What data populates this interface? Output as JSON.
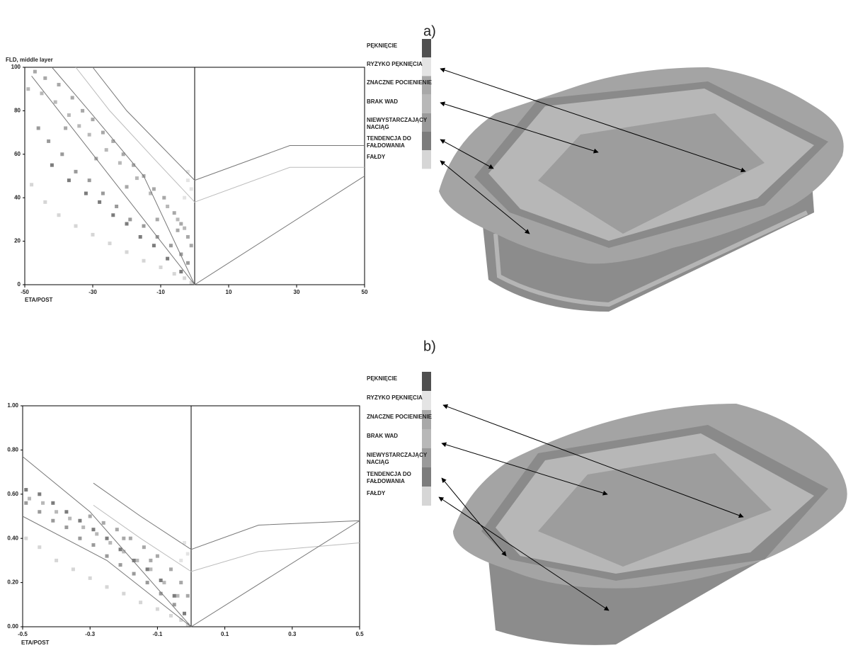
{
  "chart_data": [
    {
      "type": "scatter",
      "panel_label": "a)",
      "y_label": "FLD, middle layer",
      "x_label": "ETA/POST",
      "xlim": [
        -50,
        50
      ],
      "ylim": [
        0,
        100
      ],
      "xticks": [
        -50,
        -30,
        -10,
        10,
        30,
        50
      ],
      "yticks": [
        0,
        20,
        40,
        60,
        80,
        100
      ],
      "series": [
        {
          "name": "PĘKNIĘCIE",
          "color": "#505050",
          "x": [],
          "values": []
        },
        {
          "name": "RYZYKO PĘKNIĘCIA",
          "color": "#e4e4e4",
          "x": [
            -2,
            -1,
            -3,
            -2
          ],
          "values": [
            48,
            44,
            40,
            52
          ]
        },
        {
          "name": "ZNACZNE POCIENIENIE",
          "color": "#a8a8a8",
          "x": [
            -47,
            -44,
            -40,
            -36,
            -33,
            -30,
            -27,
            -24,
            -21,
            -18,
            -15,
            -12,
            -9,
            -6,
            -4,
            -2,
            -1,
            -38,
            -29,
            -20,
            -11,
            -5
          ],
          "values": [
            98,
            95,
            92,
            86,
            80,
            76,
            70,
            66,
            60,
            55,
            50,
            44,
            40,
            33,
            28,
            22,
            18,
            72,
            58,
            45,
            30,
            25
          ]
        },
        {
          "name": "BRAK WAD",
          "color": "#b8b8b8",
          "x": [
            -49,
            -45,
            -41,
            -37,
            -34,
            -31,
            -26,
            -22,
            -17,
            -13,
            -8,
            -5,
            -3
          ],
          "values": [
            90,
            88,
            84,
            78,
            73,
            69,
            62,
            56,
            49,
            42,
            36,
            30,
            26
          ]
        },
        {
          "name": "NIEWYSTARCZAJĄCY NACIĄG",
          "color": "#9a9a9a",
          "x": [
            -46,
            -43,
            -39,
            -35,
            -31,
            -27,
            -23,
            -19,
            -15,
            -11,
            -7,
            -4,
            -2
          ],
          "values": [
            72,
            66,
            60,
            52,
            48,
            42,
            36,
            30,
            27,
            22,
            18,
            14,
            10
          ]
        },
        {
          "name": "TENDENCJA DO FAŁDOWANIA",
          "color": "#7c7c7c",
          "x": [
            -42,
            -37,
            -32,
            -28,
            -24,
            -20,
            -16,
            -12,
            -8,
            -4
          ],
          "values": [
            55,
            48,
            42,
            38,
            32,
            28,
            22,
            18,
            12,
            6
          ]
        },
        {
          "name": "FAŁDY",
          "color": "#d6d6d6",
          "x": [
            -48,
            -44,
            -40,
            -35,
            -30,
            -25,
            -20,
            -15,
            -10,
            -6,
            -3,
            -1
          ],
          "values": [
            46,
            38,
            32,
            27,
            23,
            19,
            15,
            11,
            8,
            5,
            3,
            1
          ]
        }
      ],
      "curves": [
        {
          "color": "#777777",
          "x": [
            -30,
            -20,
            -10,
            0,
            28,
            50
          ],
          "values": [
            100,
            80,
            64,
            48,
            64,
            64
          ]
        },
        {
          "color": "#bbbbbb",
          "x": [
            -35,
            -25,
            -12,
            0,
            28,
            50
          ],
          "values": [
            100,
            80,
            58,
            38,
            54,
            54
          ]
        },
        {
          "color": "#777777",
          "x": [
            -42,
            -30,
            -15,
            0
          ],
          "values": [
            100,
            78,
            50,
            0
          ]
        },
        {
          "color": "#777777",
          "x": [
            -48,
            -30,
            -15,
            0,
            50
          ],
          "values": [
            96,
            60,
            30,
            0,
            50
          ]
        }
      ]
    },
    {
      "type": "scatter",
      "panel_label": "b)",
      "x_label": "ETA/POST",
      "xlim": [
        -0.5,
        0.5
      ],
      "ylim": [
        0,
        1
      ],
      "xticks": [
        -0.5,
        -0.3,
        -0.1,
        0.1,
        0.3,
        0.5
      ],
      "yticks": [
        {
          "value": 0,
          "label": "0.00"
        },
        {
          "value": 0.2,
          "label": "0.20"
        },
        {
          "value": 0.4,
          "label": "0.40"
        },
        {
          "value": 0.6,
          "label": "0.60"
        },
        {
          "value": 0.8,
          "label": "0.80"
        },
        {
          "value": 1,
          "label": "1.00"
        }
      ],
      "series": [
        {
          "name": "PĘKNIĘCIE",
          "color": "#505050",
          "x": [],
          "values": []
        },
        {
          "name": "RYZYKO PĘKNIĘCIA",
          "color": "#e4e4e4",
          "x": [
            -0.02,
            -0.01,
            -0.03
          ],
          "values": [
            0.38,
            0.33,
            0.3
          ]
        },
        {
          "name": "ZNACZNE POCIENIENIE",
          "color": "#a8a8a8",
          "x": [
            -0.3,
            -0.26,
            -0.22,
            -0.18,
            -0.14,
            -0.1,
            -0.06,
            -0.03,
            -0.01,
            -0.2,
            -0.12
          ],
          "values": [
            0.5,
            0.47,
            0.44,
            0.4,
            0.36,
            0.32,
            0.26,
            0.2,
            0.14,
            0.4,
            0.3
          ]
        },
        {
          "name": "BRAK WAD",
          "color": "#b8b8b8",
          "x": [
            -0.48,
            -0.44,
            -0.4,
            -0.36,
            -0.32,
            -0.28,
            -0.24,
            -0.2,
            -0.16,
            -0.12,
            -0.08,
            -0.04
          ],
          "values": [
            0.58,
            0.56,
            0.52,
            0.49,
            0.45,
            0.42,
            0.38,
            0.34,
            0.3,
            0.26,
            0.2,
            0.14
          ]
        },
        {
          "name": "NIEWYSTARCZAJĄCY NACIĄG",
          "color": "#9a9a9a",
          "x": [
            -0.49,
            -0.45,
            -0.41,
            -0.37,
            -0.33,
            -0.29,
            -0.25,
            -0.21,
            -0.17,
            -0.13,
            -0.09,
            -0.05
          ],
          "values": [
            0.56,
            0.52,
            0.48,
            0.45,
            0.4,
            0.37,
            0.32,
            0.28,
            0.24,
            0.2,
            0.15,
            0.1
          ]
        },
        {
          "name": "TENDENCJA DO FAŁDOWANIA",
          "color": "#7c7c7c",
          "x": [
            -0.49,
            -0.45,
            -0.41,
            -0.37,
            -0.33,
            -0.29,
            -0.25,
            -0.21,
            -0.17,
            -0.13,
            -0.09,
            -0.05,
            -0.02
          ],
          "values": [
            0.62,
            0.6,
            0.56,
            0.52,
            0.48,
            0.44,
            0.4,
            0.35,
            0.3,
            0.26,
            0.21,
            0.14,
            0.06
          ]
        },
        {
          "name": "FAŁDY",
          "color": "#d6d6d6",
          "x": [
            -0.49,
            -0.45,
            -0.4,
            -0.35,
            -0.3,
            -0.25,
            -0.2,
            -0.15,
            -0.1,
            -0.06,
            -0.03,
            -0.01
          ],
          "values": [
            0.4,
            0.36,
            0.3,
            0.26,
            0.22,
            0.18,
            0.15,
            0.11,
            0.08,
            0.05,
            0.03,
            0.01
          ]
        }
      ],
      "curves": [
        {
          "color": "#777777",
          "x": [
            -0.29,
            -0.15,
            0,
            0.2,
            0.5
          ],
          "values": [
            0.65,
            0.5,
            0.35,
            0.46,
            0.48
          ]
        },
        {
          "color": "#bbbbbb",
          "x": [
            -0.29,
            -0.15,
            0,
            0.2,
            0.5
          ],
          "values": [
            0.55,
            0.4,
            0.25,
            0.34,
            0.38
          ]
        },
        {
          "color": "#777777",
          "x": [
            -0.5,
            -0.3,
            0,
            0.5
          ],
          "values": [
            0.77,
            0.52,
            0,
            0.48
          ]
        },
        {
          "color": "#777777",
          "x": [
            -0.5,
            -0.25,
            0
          ],
          "values": [
            0.5,
            0.3,
            0
          ]
        }
      ]
    }
  ]
}
